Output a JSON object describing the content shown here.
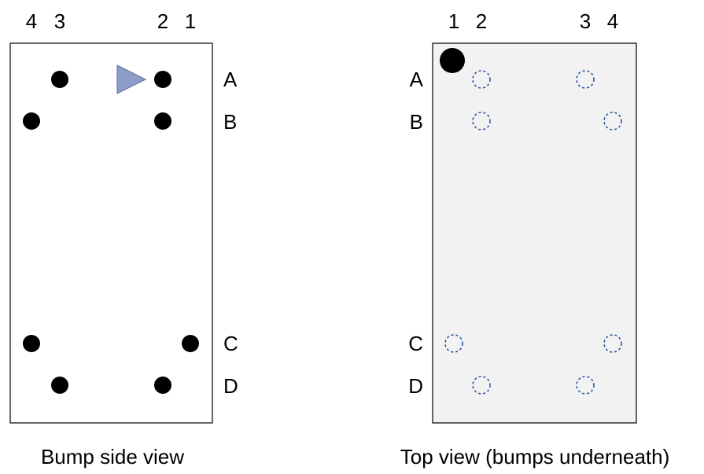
{
  "colors": {
    "bump_fill": "#000000",
    "top_view_background": "#f2f2f2",
    "hidden_bump_stroke": "#1f4e9c",
    "orientation_marker": "#8e9dc8",
    "outline": "#000000"
  },
  "bump_side_view": {
    "caption": "Bump side view",
    "column_labels": [
      "4",
      "3",
      "2",
      "1"
    ],
    "row_labels": [
      "A",
      "B",
      "C",
      "D"
    ],
    "orientation_marker_icon": "triangle-pin1-marker-icon",
    "bump_icon": "solid-bump-icon",
    "bumps": [
      "A3",
      "A2",
      "B4",
      "B2",
      "C4",
      "C1",
      "D3",
      "D2"
    ]
  },
  "top_view": {
    "caption": "Top view (bumps underneath)",
    "column_labels": [
      "1",
      "2",
      "3",
      "4"
    ],
    "row_labels": [
      "A",
      "B",
      "C",
      "D"
    ],
    "pin1_marker_icon": "pin1-dot-icon",
    "hidden_bump_icon": "dashed-circle-bump-icon",
    "bumps": [
      "A2",
      "A3",
      "B2",
      "B4",
      "C1",
      "C4",
      "D2",
      "D3"
    ]
  }
}
